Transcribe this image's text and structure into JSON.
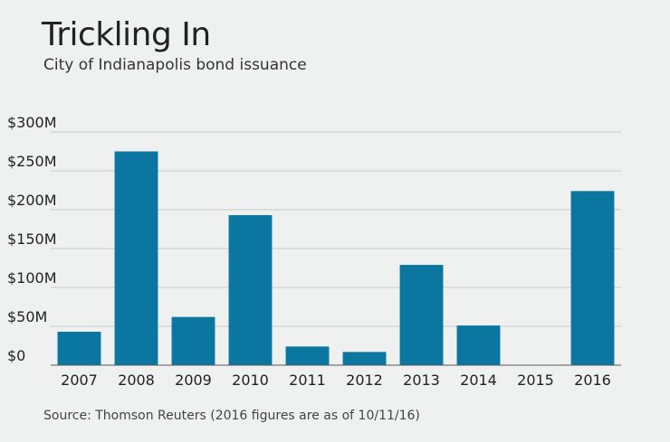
{
  "chart_data": {
    "type": "bar",
    "title": "Trickling In",
    "subtitle": "City of Indianapolis bond issuance",
    "source": "Source: Thomson Reuters (2016 figures are as of 10/11/16)",
    "categories": [
      "2007",
      "2008",
      "2009",
      "2010",
      "2011",
      "2012",
      "2013",
      "2014",
      "2015",
      "2016"
    ],
    "values": [
      43,
      275,
      62,
      193,
      24,
      17,
      129,
      51,
      0,
      224
    ],
    "unit": "$M",
    "ylim": [
      0,
      300
    ],
    "yticks": [
      0,
      50,
      100,
      150,
      200,
      250,
      300
    ],
    "ytick_labels": [
      "$0",
      "$50M",
      "$100M",
      "$150M",
      "$200M",
      "$250M",
      "$300M"
    ],
    "grid": true,
    "colors": {
      "bar": "#0b76a0",
      "grid": "#c9cccb",
      "axis": "#555555",
      "background": "#eff1f0"
    }
  }
}
